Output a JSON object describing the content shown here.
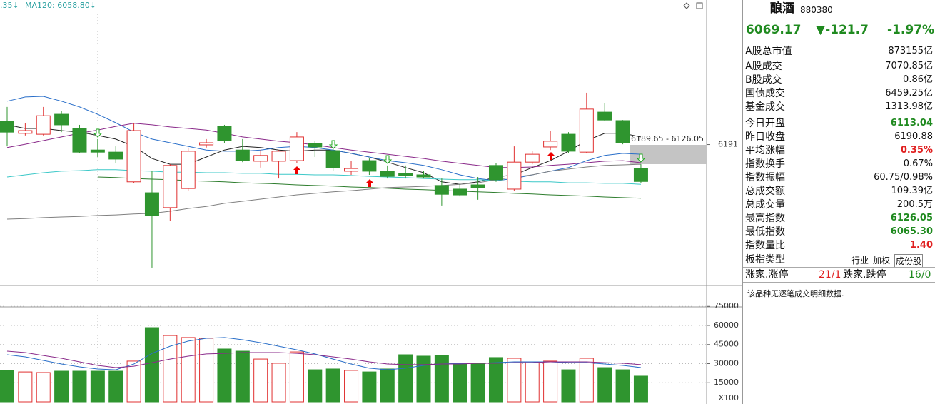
{
  "chart_data": [
    {
      "type": "candlestick",
      "indicator_labels": [
        ".35↓",
        "MA120: 6058.80↓"
      ],
      "annotation": "6189.65 - 6126.05",
      "up_color": "#e03030",
      "down_color": "#2f952f",
      "open": [
        6268,
        6228,
        6225,
        6291,
        6244,
        6173,
        6166,
        6068,
        6032,
        5983,
        6046,
        6190,
        6251,
        6173,
        6136,
        6136,
        6138,
        6195,
        6171,
        6103,
        6138,
        6103,
        6096,
        6091,
        6056,
        6044,
        6058,
        6122,
        6044,
        6133,
        6183,
        6225,
        6166,
        6298,
        6270,
        6113.04
      ],
      "high": [
        6315,
        6261,
        6315,
        6303,
        6256,
        6209,
        6185,
        6263,
        6103,
        6126,
        6181,
        6209,
        6256,
        6209,
        6173,
        6173,
        6232,
        6204,
        6185,
        6138,
        6145,
        6122,
        6122,
        6103,
        6079,
        6060,
        6084,
        6131,
        6185,
        6169,
        6237,
        6232,
        6362,
        6327,
        6272,
        6126.05
      ],
      "low": [
        6185,
        6221,
        6221,
        6232,
        6162,
        6150,
        6131,
        6063,
        5785,
        5938,
        6037,
        6181,
        6197,
        6133,
        6115,
        6079,
        6131,
        6150,
        6103,
        6091,
        6091,
        6079,
        6079,
        6079,
        5990,
        6020,
        6009,
        6068,
        6037,
        6126,
        6173,
        6162,
        6162,
        6268,
        6192,
        6065.3
      ],
      "close": [
        6232,
        6237,
        6286,
        6256,
        6166,
        6166,
        6143,
        6237,
        5957,
        6122,
        6169,
        6197,
        6204,
        6138,
        6155,
        6169,
        6216,
        6183,
        6115,
        6112,
        6103,
        6086,
        6089,
        6084,
        6027,
        6025,
        6049,
        6075,
        6133,
        6159,
        6202,
        6169,
        6308,
        6272,
        6197,
        6069.17
      ],
      "lines": [
        {
          "color": "#222222",
          "values": [
            6256,
            6244,
            6244,
            6237,
            6232,
            6221,
            6209,
            6185,
            6145,
            6126,
            6126,
            6150,
            6173,
            6185,
            6181,
            6173,
            6169,
            6173,
            6173,
            6162,
            6150,
            6133,
            6115,
            6098,
            6068,
            6060,
            6068,
            6084,
            6091,
            6115,
            6138,
            6169,
            6204,
            6228,
            6228,
            6216
          ]
        },
        {
          "color": "#2a6fc9",
          "values": [
            6334,
            6348,
            6350,
            6334,
            6315,
            6291,
            6263,
            6232,
            6209,
            6197,
            6185,
            6173,
            6169,
            6169,
            6173,
            6181,
            6185,
            6181,
            6173,
            6162,
            6150,
            6138,
            6131,
            6122,
            6108,
            6091,
            6079,
            6072,
            6079,
            6091,
            6103,
            6115,
            6138,
            6155,
            6162,
            6159
          ]
        },
        {
          "color": "#8a2a8a",
          "values": [
            6181,
            6192,
            6204,
            6216,
            6228,
            6239,
            6251,
            6261,
            6256,
            6249,
            6244,
            6239,
            6228,
            6216,
            6209,
            6202,
            6197,
            6190,
            6181,
            6173,
            6166,
            6159,
            6152,
            6145,
            6136,
            6129,
            6122,
            6115,
            6115,
            6117,
            6122,
            6126,
            6131,
            6136,
            6138,
            6131
          ]
        },
        {
          "color": "#3cc8c8",
          "values": [
            6084,
            6091,
            6098,
            6103,
            6105,
            6108,
            6108,
            6105,
            6103,
            6100,
            6100,
            6098,
            6098,
            6096,
            6096,
            6093,
            6093,
            6091,
            6091,
            6089,
            6086,
            6084,
            6082,
            6079,
            6077,
            6075,
            6075,
            6072,
            6070,
            6068,
            6068,
            6065,
            6065,
            6063,
            6063,
            6060
          ]
        },
        {
          "color": "#808080",
          "values": [
            5945,
            5947,
            5950,
            5952,
            5954,
            5957,
            5959,
            5962,
            5964,
            5971,
            5980,
            5987,
            5997,
            6004,
            6011,
            6018,
            6025,
            6030,
            6035,
            6039,
            6044,
            6049,
            6051,
            6053,
            6056,
            6060,
            6065,
            6075,
            6084,
            6091,
            6103,
            6110,
            6117,
            6122,
            6124,
            6126
          ]
        },
        {
          "color": "#2e7d2e",
          "values": [
            null,
            null,
            null,
            null,
            null,
            6084,
            6082,
            6079,
            6077,
            6075,
            6072,
            6070,
            6068,
            6065,
            6063,
            6061,
            6058,
            6056,
            6054,
            6051,
            6049,
            6047,
            6044,
            6042,
            6040,
            6037,
            6035,
            6033,
            6030,
            6028,
            6025,
            6023,
            6021,
            6018,
            6016,
            6014
          ]
        }
      ],
      "ylim": [
        5726,
        6668
      ],
      "yticks": [
        6191
      ]
    },
    {
      "type": "bar",
      "values": [
        24700,
        23500,
        23000,
        24100,
        24100,
        24100,
        24100,
        32000,
        58300,
        52100,
        50500,
        49900,
        41500,
        39800,
        33600,
        30300,
        39200,
        25200,
        25800,
        24700,
        23500,
        25800,
        37000,
        35900,
        36400,
        30300,
        30300,
        34800,
        34200,
        31400,
        32000,
        25200,
        34200,
        26900,
        25200,
        20200
      ],
      "lines": [
        {
          "color": "#2a6fc9",
          "values": [
            37000,
            35300,
            32500,
            29700,
            27500,
            25800,
            25200,
            29700,
            38100,
            43700,
            47700,
            49900,
            50500,
            48800,
            46500,
            43700,
            40900,
            37600,
            33600,
            29700,
            26400,
            25200,
            26400,
            28600,
            29700,
            30300,
            30300,
            30800,
            31400,
            31400,
            31400,
            30800,
            30800,
            29700,
            28600,
            26900
          ]
        },
        {
          "color": "#8a2a8a",
          "values": [
            39800,
            38700,
            36400,
            34200,
            31400,
            28600,
            26900,
            28000,
            30800,
            33600,
            35900,
            37600,
            38100,
            38700,
            38700,
            38700,
            38100,
            37000,
            35300,
            33600,
            31400,
            29700,
            29200,
            29200,
            29700,
            29700,
            30300,
            30300,
            30800,
            30800,
            31400,
            31400,
            31400,
            30800,
            30300,
            29200
          ]
        }
      ],
      "ylim": [
        0,
        75700
      ],
      "yticks": [
        15000,
        30000,
        45000,
        60000,
        75000
      ],
      "grid": true,
      "y_unit": "X100"
    }
  ],
  "panel": {
    "name": "酿酒",
    "code": "880380",
    "price": "6069.17",
    "change": "▼-121.7",
    "change_pct": "-1.97%",
    "rows": [
      {
        "label": "A股总市值",
        "value": "873155亿"
      },
      {
        "label": "A股成交",
        "value": "7070.85亿"
      },
      {
        "label": "B股成交",
        "value": "0.86亿"
      },
      {
        "label": "国债成交",
        "value": "6459.25亿"
      },
      {
        "label": "基金成交",
        "value": "1313.98亿"
      },
      {
        "label": "今日开盘",
        "value": "6113.04"
      },
      {
        "label": "昨日收盘",
        "value": "6190.88"
      },
      {
        "label": "平均涨幅",
        "value": "0.35%"
      },
      {
        "label": "指数换手",
        "value": "0.67%"
      },
      {
        "label": "指数振幅",
        "value": "60.75/0.98%"
      },
      {
        "label": "总成交额",
        "value": "109.39亿"
      },
      {
        "label": "总成交量",
        "value": "200.5万"
      },
      {
        "label": "最高指数",
        "value": "6126.05"
      },
      {
        "label": "最低指数",
        "value": "6065.30"
      },
      {
        "label": "指数量比",
        "value": "1.40"
      }
    ],
    "index_type_label": "板指类型",
    "index_types": [
      "行业",
      "加权",
      "成份股"
    ],
    "breadth": {
      "up_label": "涨家.涨停",
      "up": "21/1",
      "down_label": "跌家.跌停",
      "down": "16/0"
    },
    "note": "该品种无逐笔成交明细数据."
  }
}
